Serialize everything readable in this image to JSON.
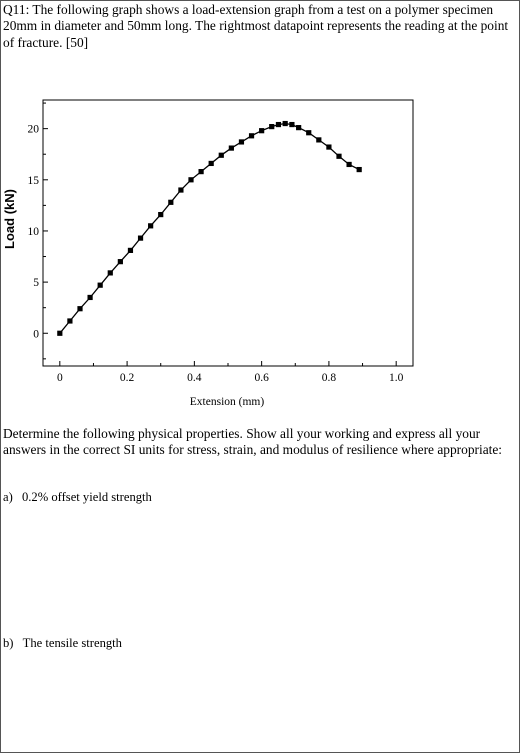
{
  "question": {
    "intro": "Q11: The following graph shows a load-extension graph from a test on a polymer specimen 20mm in diameter and 50mm long. The rightmost datapoint represents the reading at the point of fracture. [50]",
    "instructions": "Determine the following physical properties. Show all your working and express all your answers in the correct SI units for stress, strain, and modulus of resilience where appropriate:",
    "parts": [
      {
        "label": "a)",
        "text": "0.2% offset yield strength"
      },
      {
        "label": "b)",
        "text": "The tensile strength"
      }
    ]
  },
  "chart_data": {
    "type": "line",
    "xlabel": "Extension  (mm)",
    "ylabel": "Load (kN)",
    "xlim": [
      -0.05,
      1.05
    ],
    "ylim": [
      -3.2,
      22.8
    ],
    "xticks": [
      0,
      0.2,
      0.4,
      0.6,
      0.8,
      1.0
    ],
    "xtick_labels": [
      "0",
      "0.2",
      "0.4",
      "0.6",
      "0.8",
      "1.0"
    ],
    "yticks": [
      0,
      5,
      10,
      15,
      20
    ],
    "ytick_labels": [
      "0",
      "5",
      "10",
      "15",
      "20"
    ],
    "grid": false,
    "marker": "square",
    "x": [
      0,
      0.03,
      0.06,
      0.09,
      0.12,
      0.15,
      0.18,
      0.21,
      0.24,
      0.27,
      0.3,
      0.33,
      0.36,
      0.39,
      0.42,
      0.45,
      0.48,
      0.51,
      0.54,
      0.57,
      0.6,
      0.63,
      0.65,
      0.67,
      0.69,
      0.71,
      0.74,
      0.77,
      0.8,
      0.83,
      0.86,
      0.89
    ],
    "y": [
      0,
      1.2,
      2.4,
      3.5,
      4.7,
      5.9,
      7.0,
      8.1,
      9.3,
      10.5,
      11.6,
      12.8,
      14.0,
      15.0,
      15.8,
      16.6,
      17.4,
      18.1,
      18.7,
      19.3,
      19.8,
      20.2,
      20.4,
      20.5,
      20.4,
      20.1,
      19.6,
      18.9,
      18.2,
      17.3,
      16.5,
      16.0
    ]
  }
}
